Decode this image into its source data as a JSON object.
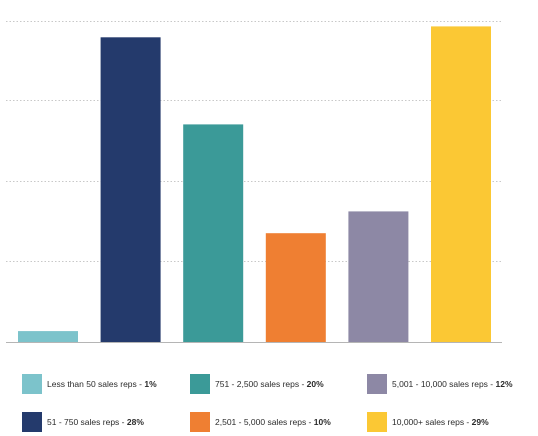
{
  "chart_data": {
    "type": "bar",
    "categories": [
      "Less than 50 sales reps",
      "51 - 750 sales reps",
      "751 - 2,500 sales reps",
      "2,501 - 5,000 sales reps",
      "5,001 - 10,000 sales reps",
      "10,000+ sales reps"
    ],
    "values": [
      1,
      28,
      20,
      10,
      12,
      29
    ],
    "colors": [
      "#7cc3cb",
      "#243a6c",
      "#3b9a98",
      "#ef7f32",
      "#8d88a5",
      "#fbc834"
    ],
    "ylim": [
      0,
      29.5
    ],
    "grid": true,
    "gridline_values": [
      7.4,
      14.8,
      22.2,
      29.5
    ],
    "legend_position": "bottom",
    "legend": [
      {
        "label": "Less than 50 sales reps - ",
        "pct": "1%",
        "color": "#7cc3cb"
      },
      {
        "label": "751 - 2,500 sales reps - ",
        "pct": "20%",
        "color": "#3b9a98"
      },
      {
        "label": "5,001 - 10,000 sales reps - ",
        "pct": "12%",
        "color": "#8d88a5"
      },
      {
        "label": "51 - 750 sales reps - ",
        "pct": "28%",
        "color": "#243a6c"
      },
      {
        "label": "2,501 - 5,000 sales reps - ",
        "pct": "10%",
        "color": "#ef7f32"
      },
      {
        "label": "10,000+ sales reps - ",
        "pct": "29%",
        "color": "#fbc834"
      }
    ]
  }
}
